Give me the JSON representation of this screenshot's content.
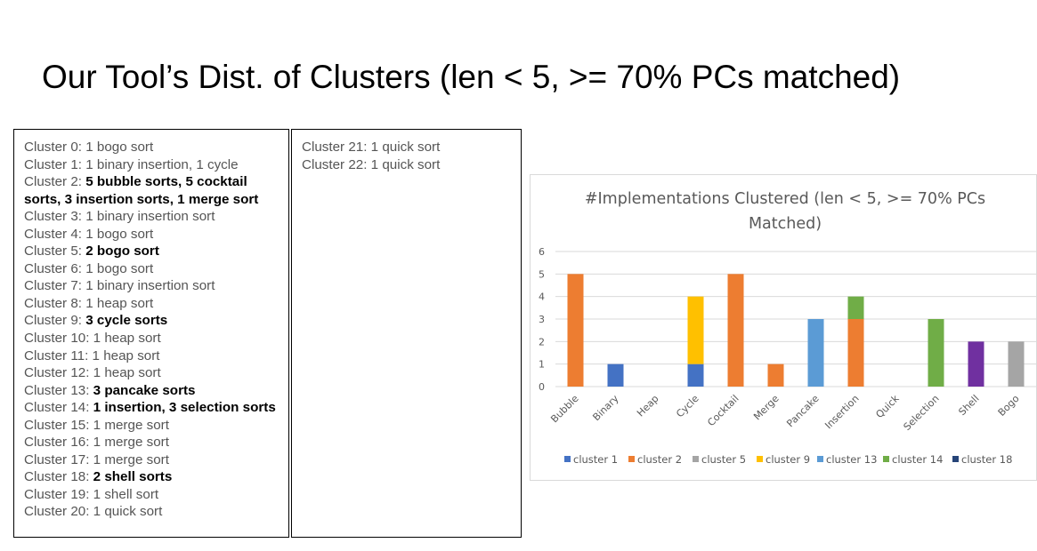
{
  "title": "Our Tool’s Dist. of Clusters (len < 5, >= 70% PCs matched)",
  "clusters_left": [
    {
      "prefix": "Cluster 0: ",
      "text": "1 bogo sort",
      "bold": false
    },
    {
      "prefix": "Cluster 1: ",
      "text": "1 binary insertion, 1 cycle",
      "bold": false
    },
    {
      "prefix": "Cluster 2: ",
      "text": "5 bubble sorts, 5 cocktail sorts, 3 insertion sorts, 1 merge sort",
      "bold": true
    },
    {
      "prefix": "Cluster 3: ",
      "text": "1 binary insertion sort",
      "bold": false
    },
    {
      "prefix": "Cluster 4: ",
      "text": "1 bogo sort",
      "bold": false
    },
    {
      "prefix": "Cluster 5: ",
      "text": "2 bogo sort",
      "bold": true
    },
    {
      "prefix": "Cluster 6: ",
      "text": "1 bogo sort",
      "bold": false
    },
    {
      "prefix": "Cluster 7: ",
      "text": "1 binary insertion sort",
      "bold": false
    },
    {
      "prefix": "Cluster 8: ",
      "text": "1 heap sort",
      "bold": false
    },
    {
      "prefix": "Cluster 9: ",
      "text": "3 cycle sorts",
      "bold": true
    },
    {
      "prefix": "Cluster 10: ",
      "text": "1 heap sort",
      "bold": false
    },
    {
      "prefix": "Cluster 11: ",
      "text": "1 heap sort",
      "bold": false
    },
    {
      "prefix": "Cluster 12: ",
      "text": "1 heap sort",
      "bold": false
    },
    {
      "prefix": "Cluster 13: ",
      "text": "3 pancake sorts",
      "bold": true
    },
    {
      "prefix": "Cluster 14: ",
      "text": "1 insertion, 3 selection sorts",
      "bold": true
    },
    {
      "prefix": "Cluster 15: ",
      "text": "1 merge sort",
      "bold": false
    },
    {
      "prefix": "Cluster 16: ",
      "text": "1 merge sort",
      "bold": false
    },
    {
      "prefix": "Cluster 17: ",
      "text": "1 merge sort",
      "bold": false
    },
    {
      "prefix": "Cluster 18: ",
      "text": "2 shell sorts",
      "bold": true
    },
    {
      "prefix": "Cluster 19: ",
      "text": "1 shell sort",
      "bold": false
    },
    {
      "prefix": "Cluster 20: ",
      "text": "1 quick sort",
      "bold": false
    }
  ],
  "clusters_right": [
    {
      "prefix": "Cluster 21: ",
      "text": "1 quick sort",
      "bold": false
    },
    {
      "prefix": "Cluster 22: ",
      "text": "1 quick sort",
      "bold": false
    }
  ],
  "chart_data": {
    "type": "bar",
    "stacked": true,
    "title": "#Implementations Clustered (len < 5, >= 70% PCs Matched)",
    "title_lines": [
      "#Implementations Clustered (len < 5, >= 70% PCs",
      "Matched)"
    ],
    "categories": [
      "Bubble",
      "Binary",
      "Heap",
      "Cycle",
      "Cocktail",
      "Merge",
      "Pancake",
      "Insertion",
      "Quick",
      "Selection",
      "Shell",
      "Bogo"
    ],
    "series": [
      {
        "name": "cluster 1",
        "color": "#4472c4",
        "values": [
          0,
          1,
          0,
          1,
          0,
          0,
          0,
          0,
          0,
          0,
          0,
          0
        ]
      },
      {
        "name": "cluster 2",
        "color": "#ed7d31",
        "values": [
          5,
          0,
          0,
          0,
          5,
          1,
          0,
          3,
          0,
          0,
          0,
          0
        ]
      },
      {
        "name": "cluster 5",
        "color": "#a5a5a5",
        "values": [
          0,
          0,
          0,
          0,
          0,
          0,
          0,
          0,
          0,
          0,
          0,
          2
        ]
      },
      {
        "name": "cluster 9",
        "color": "#ffc000",
        "values": [
          0,
          0,
          0,
          3,
          0,
          0,
          0,
          0,
          0,
          0,
          0,
          0
        ]
      },
      {
        "name": "cluster 13",
        "color": "#5b9bd5",
        "values": [
          0,
          0,
          0,
          0,
          0,
          0,
          3,
          0,
          0,
          0,
          0,
          0
        ]
      },
      {
        "name": "cluster 14",
        "color": "#70ad47",
        "values": [
          0,
          0,
          0,
          0,
          0,
          0,
          0,
          1,
          0,
          3,
          0,
          0
        ]
      },
      {
        "name": "cluster 18",
        "color": "#264478",
        "values": [
          0,
          0,
          0,
          0,
          0,
          0,
          0,
          0,
          0,
          0,
          0,
          0
        ]
      }
    ],
    "shell_bar": {
      "color": "#7030a0",
      "value": 2
    },
    "ylim": [
      0,
      6
    ],
    "yticks": [
      0,
      1,
      2,
      3,
      4,
      5,
      6
    ],
    "grid": true,
    "legend": "bottom"
  }
}
